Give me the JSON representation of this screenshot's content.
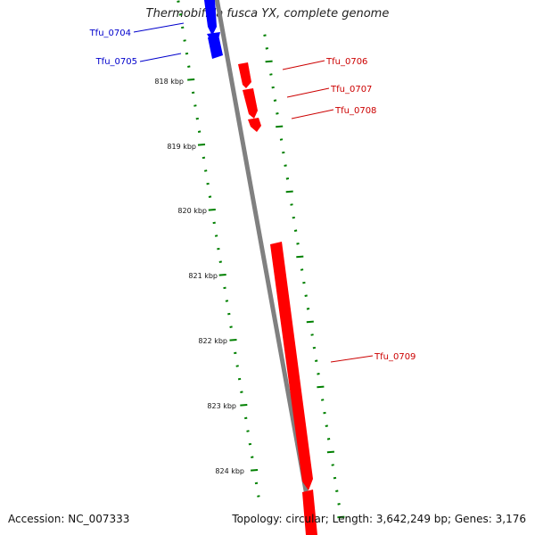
{
  "title": "Thermobifida fusca YX, complete genome",
  "accession": "Accession: NC_007333",
  "summary": "Topology: circular; Length: 3,642,249 bp; Genes: 3,176",
  "colors": {
    "forward_gene": "#ff0000",
    "reverse_gene": "#0000ff",
    "backbone": "#808080",
    "ticks": "#008000",
    "forward_label": "#cc0000",
    "reverse_label": "#0000cc"
  },
  "scale_labels": [
    "818 kbp",
    "819 kbp",
    "820 kbp",
    "821 kbp",
    "822 kbp",
    "823 kbp",
    "824 kbp"
  ],
  "genes": [
    {
      "name": "Tfu_0704",
      "strand": "reverse"
    },
    {
      "name": "Tfu_0705",
      "strand": "reverse"
    },
    {
      "name": "Tfu_0706",
      "strand": "forward"
    },
    {
      "name": "Tfu_0707",
      "strand": "forward"
    },
    {
      "name": "Tfu_0708",
      "strand": "forward"
    },
    {
      "name": "Tfu_0709",
      "strand": "forward"
    }
  ]
}
